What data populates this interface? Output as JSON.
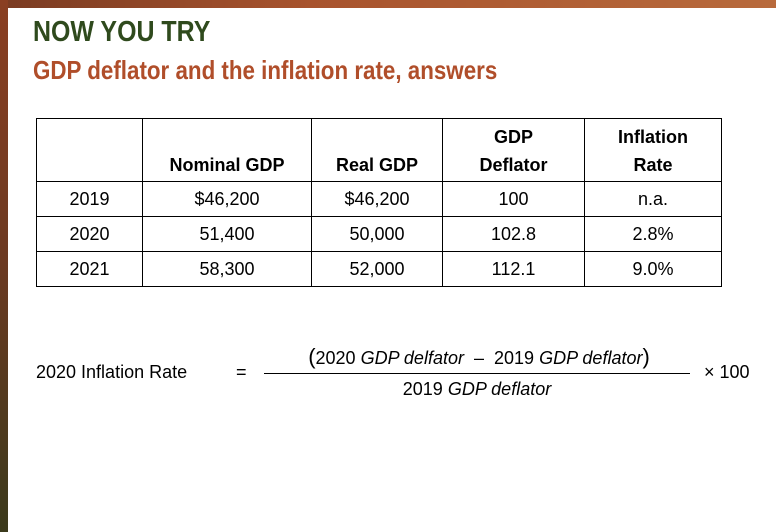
{
  "title": "NOW YOU TRY",
  "subtitle": "GDP deflator and the inflation rate, answers",
  "table": {
    "headers": [
      "",
      "Nominal GDP",
      "Real GDP",
      "GDP Deflator",
      "Inflation Rate"
    ],
    "header_lines": {
      "deflator": [
        "GDP",
        "Deflator"
      ],
      "inflation": [
        "Inflation",
        "Rate"
      ]
    },
    "rows": [
      {
        "year": "2019",
        "nominal": "$46,200",
        "real": "$46,200",
        "deflator": "100",
        "inflation": "n.a."
      },
      {
        "year": "2020",
        "nominal": "51,400",
        "real": "50,000",
        "deflator": "102.8",
        "inflation": "2.8%"
      },
      {
        "year": "2021",
        "nominal": "58,300",
        "real": "52,000",
        "deflator": "112.1",
        "inflation": "9.0%"
      }
    ]
  },
  "formula": {
    "label": "2020 Inflation Rate",
    "equals": "=",
    "num_year1": "2020",
    "num_term1": "GDP delfator",
    "minus": "–",
    "num_year2": "2019",
    "num_term2": "GDP deflator",
    "den_year": "2019",
    "den_term": "GDP deflator",
    "multiplier": "× 100"
  },
  "colors": {
    "title": "#2f4a1d",
    "subtitle": "#b04e2a",
    "frame": "#8a3f22"
  }
}
